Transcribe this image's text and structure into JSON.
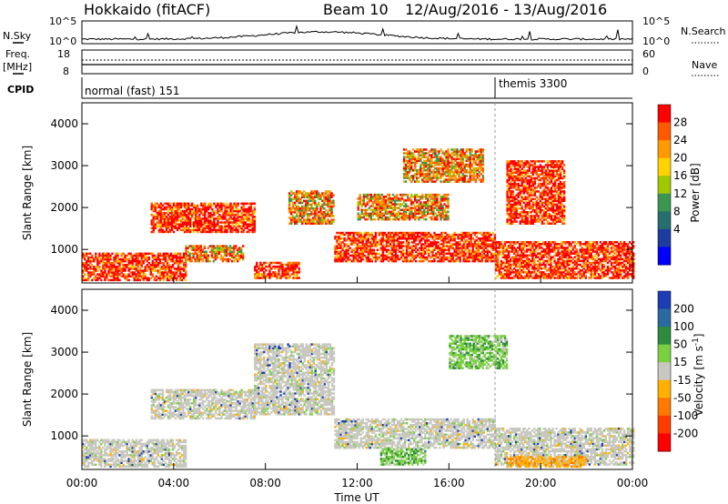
{
  "header": {
    "station": "Hokkaido (fitACF)",
    "beam": "Beam 10",
    "dates": "12/Aug/2016 - 13/Aug/2016"
  },
  "noise_panel": {
    "left_label": "N.Sky",
    "right_label": "N.Search",
    "left_ticks": [
      "10^5",
      "10^0"
    ],
    "right_ticks": [
      "10^5",
      "10^0"
    ]
  },
  "freq_panel": {
    "left_label_1": "Freq.",
    "left_label_2": "[MHz]",
    "right_label": "Nave",
    "left_ticks": [
      "18",
      "8"
    ],
    "right_ticks": [
      "60",
      "0"
    ]
  },
  "cpid_panel": {
    "label": "CPID",
    "modes": [
      {
        "text": "normal (fast) 151",
        "start_hour": 0
      },
      {
        "text": "themis 3300",
        "start_hour": 18
      }
    ]
  },
  "time_axis": {
    "label": "Time UT",
    "ticks": [
      "00:00",
      "04:00",
      "08:00",
      "12:00",
      "16:00",
      "20:00",
      "00:00"
    ]
  },
  "chart_data": [
    {
      "type": "heatmap",
      "name": "power",
      "ylabel": "Slant Range [km]",
      "yticks": [
        "1000",
        "2000",
        "3000",
        "4000"
      ],
      "ylim": [
        200,
        4500
      ],
      "xlim": [
        0,
        24
      ],
      "colorbar_label": "Power [dB]",
      "colorbar_ticks": [
        "28",
        "24",
        "20",
        "16",
        "12",
        "8",
        "4"
      ],
      "colorbar_colors": [
        "#ff0000",
        "#ff5a00",
        "#ff9b00",
        "#ffd200",
        "#a0c800",
        "#3c9650",
        "#286e6e",
        "#1e3ca0",
        "#0000ff"
      ],
      "regions": [
        {
          "t0": 0.0,
          "t1": 4.5,
          "r0": 250,
          "r1": 900,
          "level": "high"
        },
        {
          "t0": 3.0,
          "t1": 7.5,
          "r0": 1400,
          "r1": 2100,
          "level": "high"
        },
        {
          "t0": 4.5,
          "t1": 7.0,
          "r0": 700,
          "r1": 1100,
          "level": "mid"
        },
        {
          "t0": 7.5,
          "t1": 9.5,
          "r0": 300,
          "r1": 700,
          "level": "high"
        },
        {
          "t0": 9.0,
          "t1": 11.0,
          "r0": 1600,
          "r1": 2400,
          "level": "mid"
        },
        {
          "t0": 11.0,
          "t1": 18.0,
          "r0": 700,
          "r1": 1400,
          "level": "high"
        },
        {
          "t0": 12.0,
          "t1": 16.0,
          "r0": 1700,
          "r1": 2300,
          "level": "mid"
        },
        {
          "t0": 14.0,
          "t1": 17.5,
          "r0": 2600,
          "r1": 3400,
          "level": "mid"
        },
        {
          "t0": 18.5,
          "t1": 21.0,
          "r0": 1600,
          "r1": 3100,
          "level": "high"
        },
        {
          "t0": 18.0,
          "t1": 24.0,
          "r0": 300,
          "r1": 1200,
          "level": "high"
        }
      ]
    },
    {
      "type": "heatmap",
      "name": "velocity",
      "ylabel": "Slant Range [km]",
      "yticks": [
        "1000",
        "2000",
        "3000",
        "4000"
      ],
      "ylim": [
        200,
        4500
      ],
      "xlim": [
        0,
        24
      ],
      "colorbar_label": "Velocity [m s^-1]",
      "colorbar_ticks": [
        "200",
        "100",
        "50",
        "15",
        "-15",
        "-50",
        "-100",
        "-200"
      ],
      "colorbar_colors": [
        "#1e3cb4",
        "#2a6aa0",
        "#2e8a3c",
        "#7ad040",
        "#c8c8c0",
        "#ffb000",
        "#ff7800",
        "#ff3c00",
        "#ff0000"
      ],
      "regions": [
        {
          "t0": 0.0,
          "t1": 4.5,
          "r0": 250,
          "r1": 900,
          "level": "ground"
        },
        {
          "t0": 3.0,
          "t1": 7.5,
          "r0": 1400,
          "r1": 2100,
          "level": "ground"
        },
        {
          "t0": 7.5,
          "t1": 11.0,
          "r0": 1500,
          "r1": 3200,
          "level": "ground"
        },
        {
          "t0": 11.0,
          "t1": 18.0,
          "r0": 700,
          "r1": 1400,
          "level": "ground"
        },
        {
          "t0": 13.0,
          "t1": 15.0,
          "r0": 300,
          "r1": 700,
          "level": "pos"
        },
        {
          "t0": 16.0,
          "t1": 18.5,
          "r0": 2600,
          "r1": 3400,
          "level": "pos"
        },
        {
          "t0": 18.0,
          "t1": 24.0,
          "r0": 300,
          "r1": 1200,
          "level": "ground"
        },
        {
          "t0": 18.5,
          "t1": 22.0,
          "r0": 250,
          "r1": 500,
          "level": "neg"
        }
      ]
    }
  ]
}
